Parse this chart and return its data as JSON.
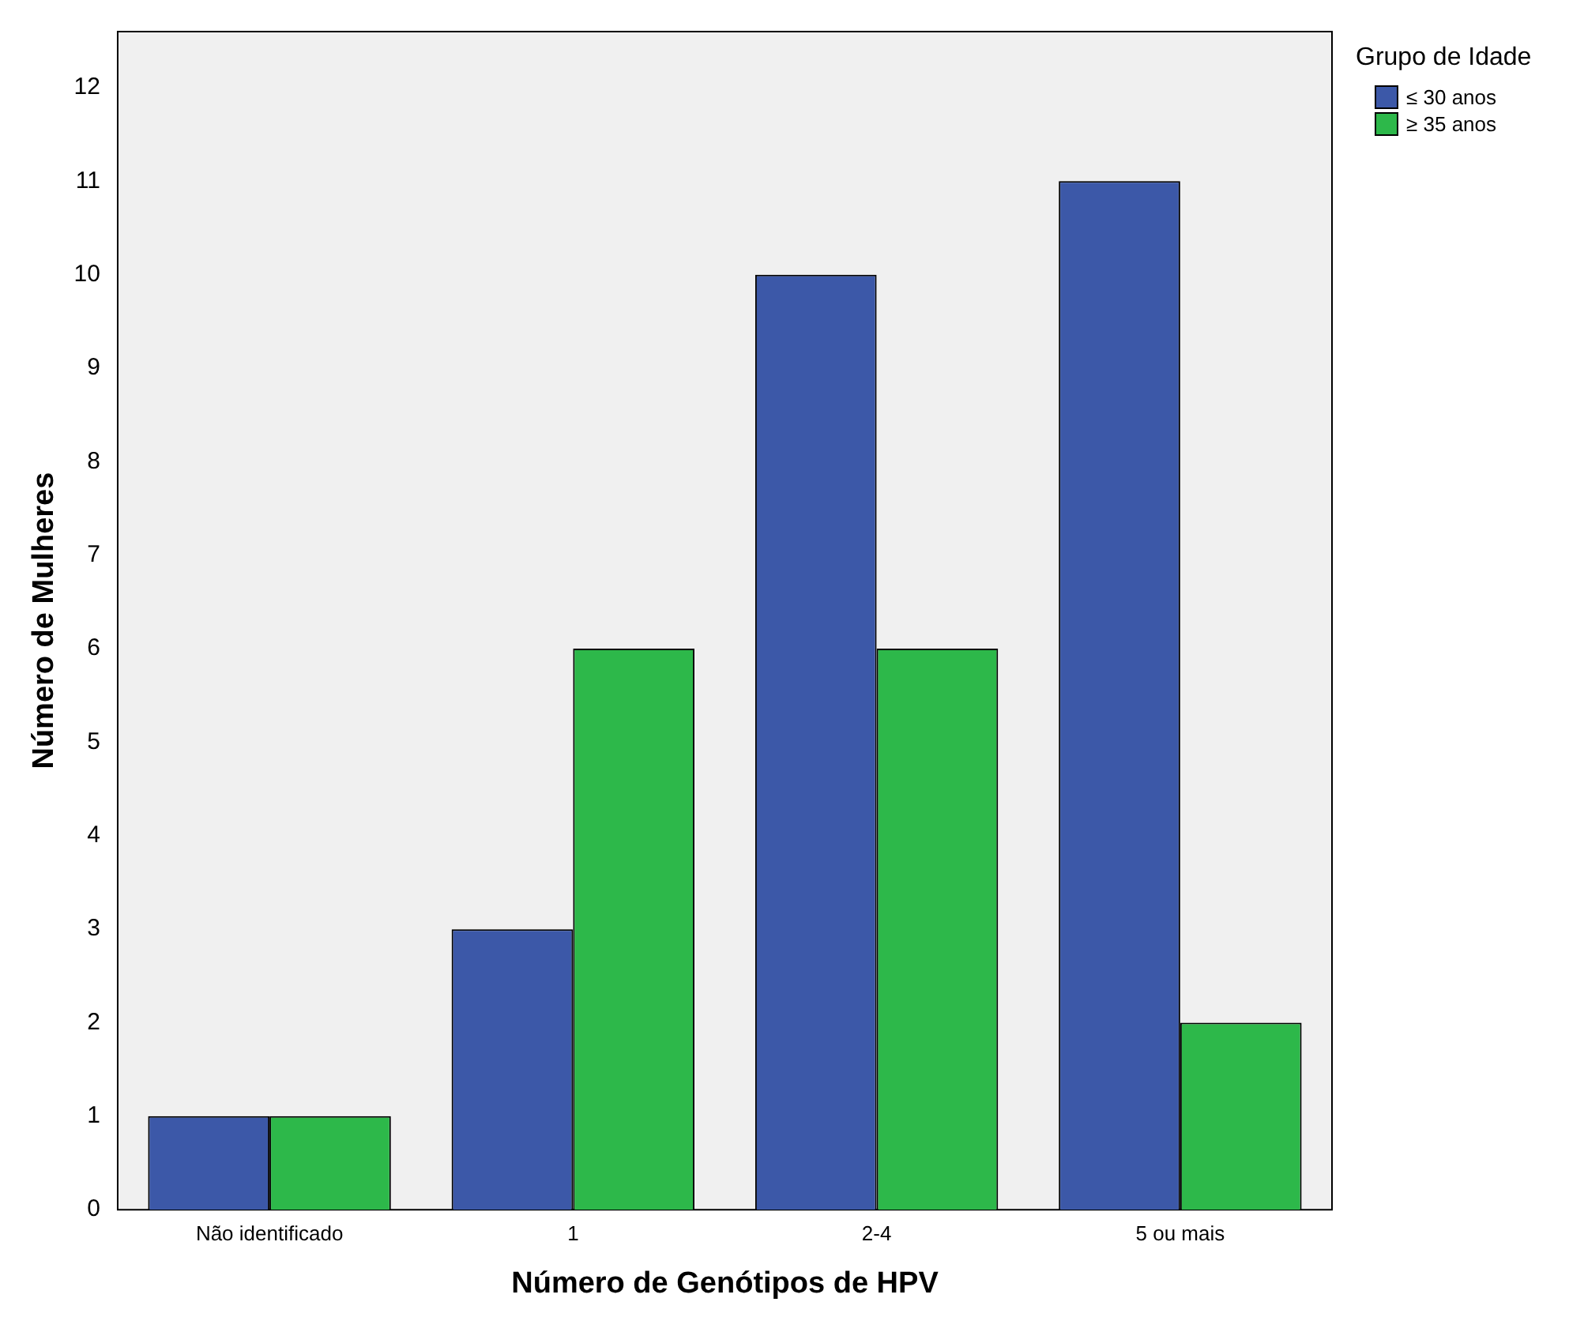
{
  "chart_data": {
    "type": "bar",
    "xlabel": "Número de Genótipos de HPV",
    "ylabel": "Número de Mulheres",
    "legend_title": "Grupo de Idade",
    "categories": [
      "Não identificado",
      "1",
      "2-4",
      "5 ou mais"
    ],
    "series": [
      {
        "name": "≤ 30 anos",
        "color": "#3c58a8",
        "values": [
          1,
          3,
          10,
          11
        ]
      },
      {
        "name": "≥ 35 anos",
        "color": "#2db84a",
        "values": [
          1,
          6,
          6,
          2
        ]
      }
    ],
    "ylim": [
      0,
      12.6
    ],
    "yticks": [
      0,
      1,
      2,
      3,
      4,
      5,
      6,
      7,
      8,
      9,
      10,
      11,
      12
    ],
    "grid": false,
    "legend": "top right"
  }
}
